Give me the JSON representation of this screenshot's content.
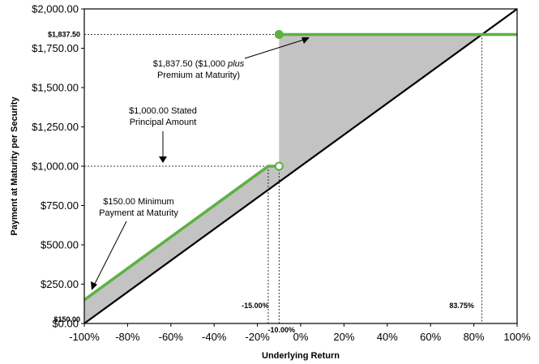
{
  "chart_data": {
    "type": "line",
    "title": "",
    "xlabel": "Underlying Return",
    "ylabel": "Payment at Maturity per Security",
    "xlim": [
      -100,
      100
    ],
    "ylim": [
      0,
      2000
    ],
    "x_ticks": [
      "-100%",
      "-80%",
      "-60%",
      "-40%",
      "-20%",
      "0%",
      "20%",
      "40%",
      "60%",
      "80%",
      "100%"
    ],
    "y_ticks": [
      "$0.00",
      "$250.00",
      "$500.00",
      "$750.00",
      "$1,000.00",
      "$1,250.00",
      "$1,500.00",
      "$1,750.00",
      "$2,000.00"
    ],
    "grid": false,
    "series": [
      {
        "values": [
          [
            -100,
            0
          ],
          [
            100,
            2000
          ]
        ],
        "color": "#000000"
      },
      {
        "values": [
          [
            -100,
            150
          ],
          [
            -15,
            1000
          ],
          [
            -10,
            1000
          ]
        ],
        "color": "#5db143"
      },
      {
        "values": [
          [
            -10,
            1837.5
          ],
          [
            100,
            1837.5
          ]
        ],
        "color": "#5db143"
      }
    ],
    "shaded_regions": [
      {
        "points": [
          [
            -100,
            0
          ],
          [
            -100,
            150
          ],
          [
            -15,
            1000
          ],
          [
            -10,
            1000
          ],
          [
            -10,
            900
          ]
        ],
        "color": "#c3c3c3"
      },
      {
        "points": [
          [
            -10,
            900
          ],
          [
            -10,
            1837.5
          ],
          [
            83.75,
            1837.5
          ]
        ],
        "color": "#c3c3c3"
      }
    ],
    "markers": [
      {
        "x": -10,
        "y": 1837.5,
        "style": "filled",
        "color": "#5db143"
      },
      {
        "x": -10,
        "y": 1000,
        "style": "open",
        "color": "#5db143"
      }
    ],
    "reference_labels": {
      "y_1837": "$1,837.50",
      "y_150": "$150.00",
      "x_neg15": "-15.00%",
      "x_neg10": "-10.00%",
      "x_8375": "83.75%"
    },
    "annotations": {
      "premium_line1": "$1,837.50 ($1,000 ",
      "premium_italic": "plus",
      "premium_line2": "Premium at Maturity)",
      "stated_line1": "$1,000.00 Stated",
      "stated_line2": "Principal Amount",
      "minimum_line1": "$150.00 Minimum",
      "minimum_line2": "Payment at Maturity"
    }
  }
}
